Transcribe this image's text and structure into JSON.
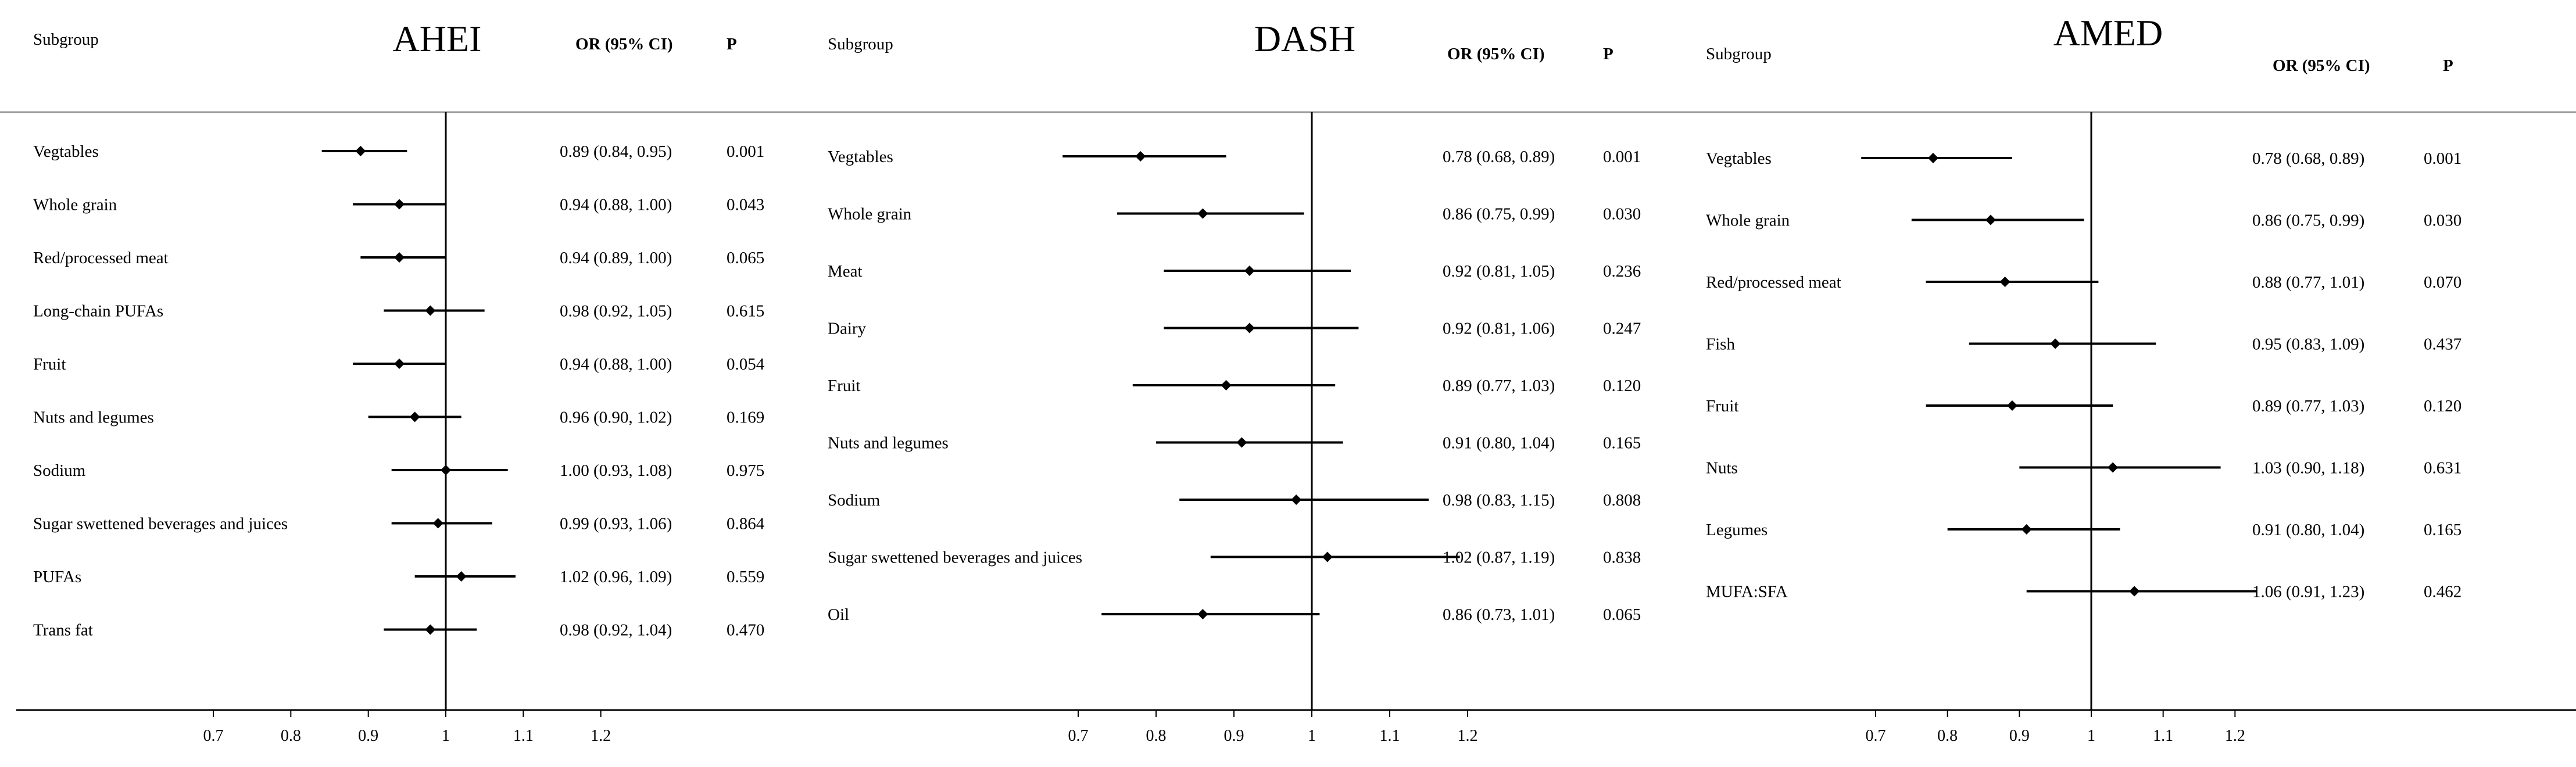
{
  "chart_data": [
    {
      "type": "forest",
      "title": "AHEI",
      "subgroup_header": "Subgroup",
      "or_header": "OR (95% CI)",
      "p_header": "P",
      "reference_line": 1,
      "xlim": [
        0.7,
        1.2
      ],
      "xticks": [
        "0.7",
        "0.8",
        "0.9",
        "1",
        "1.1",
        "1.2"
      ],
      "rows": [
        {
          "label": "Vegtables",
          "or": 0.89,
          "lo": 0.84,
          "hi": 0.95,
          "or_text": "0.89 (0.84, 0.95)",
          "p": "0.001"
        },
        {
          "label": "Whole grain",
          "or": 0.94,
          "lo": 0.88,
          "hi": 1.0,
          "or_text": "0.94 (0.88, 1.00)",
          "p": "0.043"
        },
        {
          "label": "Red/processed meat",
          "or": 0.94,
          "lo": 0.89,
          "hi": 1.0,
          "or_text": "0.94 (0.89, 1.00)",
          "p": "0.065"
        },
        {
          "label": "Long-chain PUFAs",
          "or": 0.98,
          "lo": 0.92,
          "hi": 1.05,
          "or_text": "0.98 (0.92, 1.05)",
          "p": "0.615"
        },
        {
          "label": "Fruit",
          "or": 0.94,
          "lo": 0.88,
          "hi": 1.0,
          "or_text": "0.94 (0.88, 1.00)",
          "p": "0.054"
        },
        {
          "label": "Nuts and legumes",
          "or": 0.96,
          "lo": 0.9,
          "hi": 1.02,
          "or_text": "0.96 (0.90, 1.02)",
          "p": "0.169"
        },
        {
          "label": "Sodium",
          "or": 1.0,
          "lo": 0.93,
          "hi": 1.08,
          "or_text": "1.00 (0.93, 1.08)",
          "p": "0.975"
        },
        {
          "label": "Sugar swettened beverages and juices",
          "or": 0.99,
          "lo": 0.93,
          "hi": 1.06,
          "or_text": "0.99 (0.93, 1.06)",
          "p": "0.864"
        },
        {
          "label": "PUFAs",
          "or": 1.02,
          "lo": 0.96,
          "hi": 1.09,
          "or_text": "1.02 (0.96, 1.09)",
          "p": "0.559"
        },
        {
          "label": "Trans fat",
          "or": 0.98,
          "lo": 0.92,
          "hi": 1.04,
          "or_text": "0.98 (0.92, 1.04)",
          "p": "0.470"
        }
      ]
    },
    {
      "type": "forest",
      "title": "DASH",
      "subgroup_header": "Subgroup",
      "or_header": "OR (95% CI)",
      "p_header": "P",
      "reference_line": 1,
      "xlim": [
        0.7,
        1.2
      ],
      "xticks": [
        "0.7",
        "0.8",
        "0.9",
        "1",
        "1.1",
        "1.2"
      ],
      "rows": [
        {
          "label": "Vegtables",
          "or": 0.78,
          "lo": 0.68,
          "hi": 0.89,
          "or_text": "0.78 (0.68, 0.89)",
          "p": "0.001"
        },
        {
          "label": "Whole grain",
          "or": 0.86,
          "lo": 0.75,
          "hi": 0.99,
          "or_text": "0.86 (0.75, 0.99)",
          "p": "0.030"
        },
        {
          "label": "Meat",
          "or": 0.92,
          "lo": 0.81,
          "hi": 1.05,
          "or_text": "0.92 (0.81, 1.05)",
          "p": "0.236"
        },
        {
          "label": "Dairy",
          "or": 0.92,
          "lo": 0.81,
          "hi": 1.06,
          "or_text": "0.92 (0.81, 1.06)",
          "p": "0.247"
        },
        {
          "label": "Fruit",
          "or": 0.89,
          "lo": 0.77,
          "hi": 1.03,
          "or_text": "0.89 (0.77, 1.03)",
          "p": "0.120"
        },
        {
          "label": "Nuts and legumes",
          "or": 0.91,
          "lo": 0.8,
          "hi": 1.04,
          "or_text": "0.91 (0.80, 1.04)",
          "p": "0.165"
        },
        {
          "label": "Sodium",
          "or": 0.98,
          "lo": 0.83,
          "hi": 1.15,
          "or_text": "0.98 (0.83, 1.15)",
          "p": "0.808"
        },
        {
          "label": "Sugar swettened beverages and juices",
          "or": 1.02,
          "lo": 0.87,
          "hi": 1.19,
          "or_text": "1.02 (0.87, 1.19)",
          "p": "0.838"
        },
        {
          "label": "Oil",
          "or": 0.86,
          "lo": 0.73,
          "hi": 1.01,
          "or_text": "0.86 (0.73, 1.01)",
          "p": "0.065"
        }
      ]
    },
    {
      "type": "forest",
      "title": "AMED",
      "subgroup_header": "Subgroup",
      "or_header": "OR (95% CI)",
      "p_header": "P",
      "reference_line": 1,
      "xlim": [
        0.7,
        1.2
      ],
      "xticks": [
        "0.7",
        "0.8",
        "0.9",
        "1",
        "1.1",
        "1.2"
      ],
      "rows": [
        {
          "label": "Vegtables",
          "or": 0.78,
          "lo": 0.68,
          "hi": 0.89,
          "or_text": "0.78 (0.68, 0.89)",
          "p": "0.001"
        },
        {
          "label": "Whole grain",
          "or": 0.86,
          "lo": 0.75,
          "hi": 0.99,
          "or_text": "0.86 (0.75, 0.99)",
          "p": "0.030"
        },
        {
          "label": "Red/processed meat",
          "or": 0.88,
          "lo": 0.77,
          "hi": 1.01,
          "or_text": "0.88 (0.77, 1.01)",
          "p": "0.070"
        },
        {
          "label": "Fish",
          "or": 0.95,
          "lo": 0.83,
          "hi": 1.09,
          "or_text": "0.95 (0.83, 1.09)",
          "p": "0.437"
        },
        {
          "label": "Fruit",
          "or": 0.89,
          "lo": 0.77,
          "hi": 1.03,
          "or_text": "0.89 (0.77, 1.03)",
          "p": "0.120"
        },
        {
          "label": "Nuts",
          "or": 1.03,
          "lo": 0.9,
          "hi": 1.18,
          "or_text": "1.03 (0.90, 1.18)",
          "p": "0.631"
        },
        {
          "label": "Legumes",
          "or": 0.91,
          "lo": 0.8,
          "hi": 1.04,
          "or_text": "0.91 (0.80, 1.04)",
          "p": "0.165"
        },
        {
          "label": "MUFA:SFA",
          "or": 1.06,
          "lo": 0.91,
          "hi": 1.23,
          "or_text": "1.06 (0.91, 1.23)",
          "p": "0.462"
        }
      ]
    }
  ]
}
